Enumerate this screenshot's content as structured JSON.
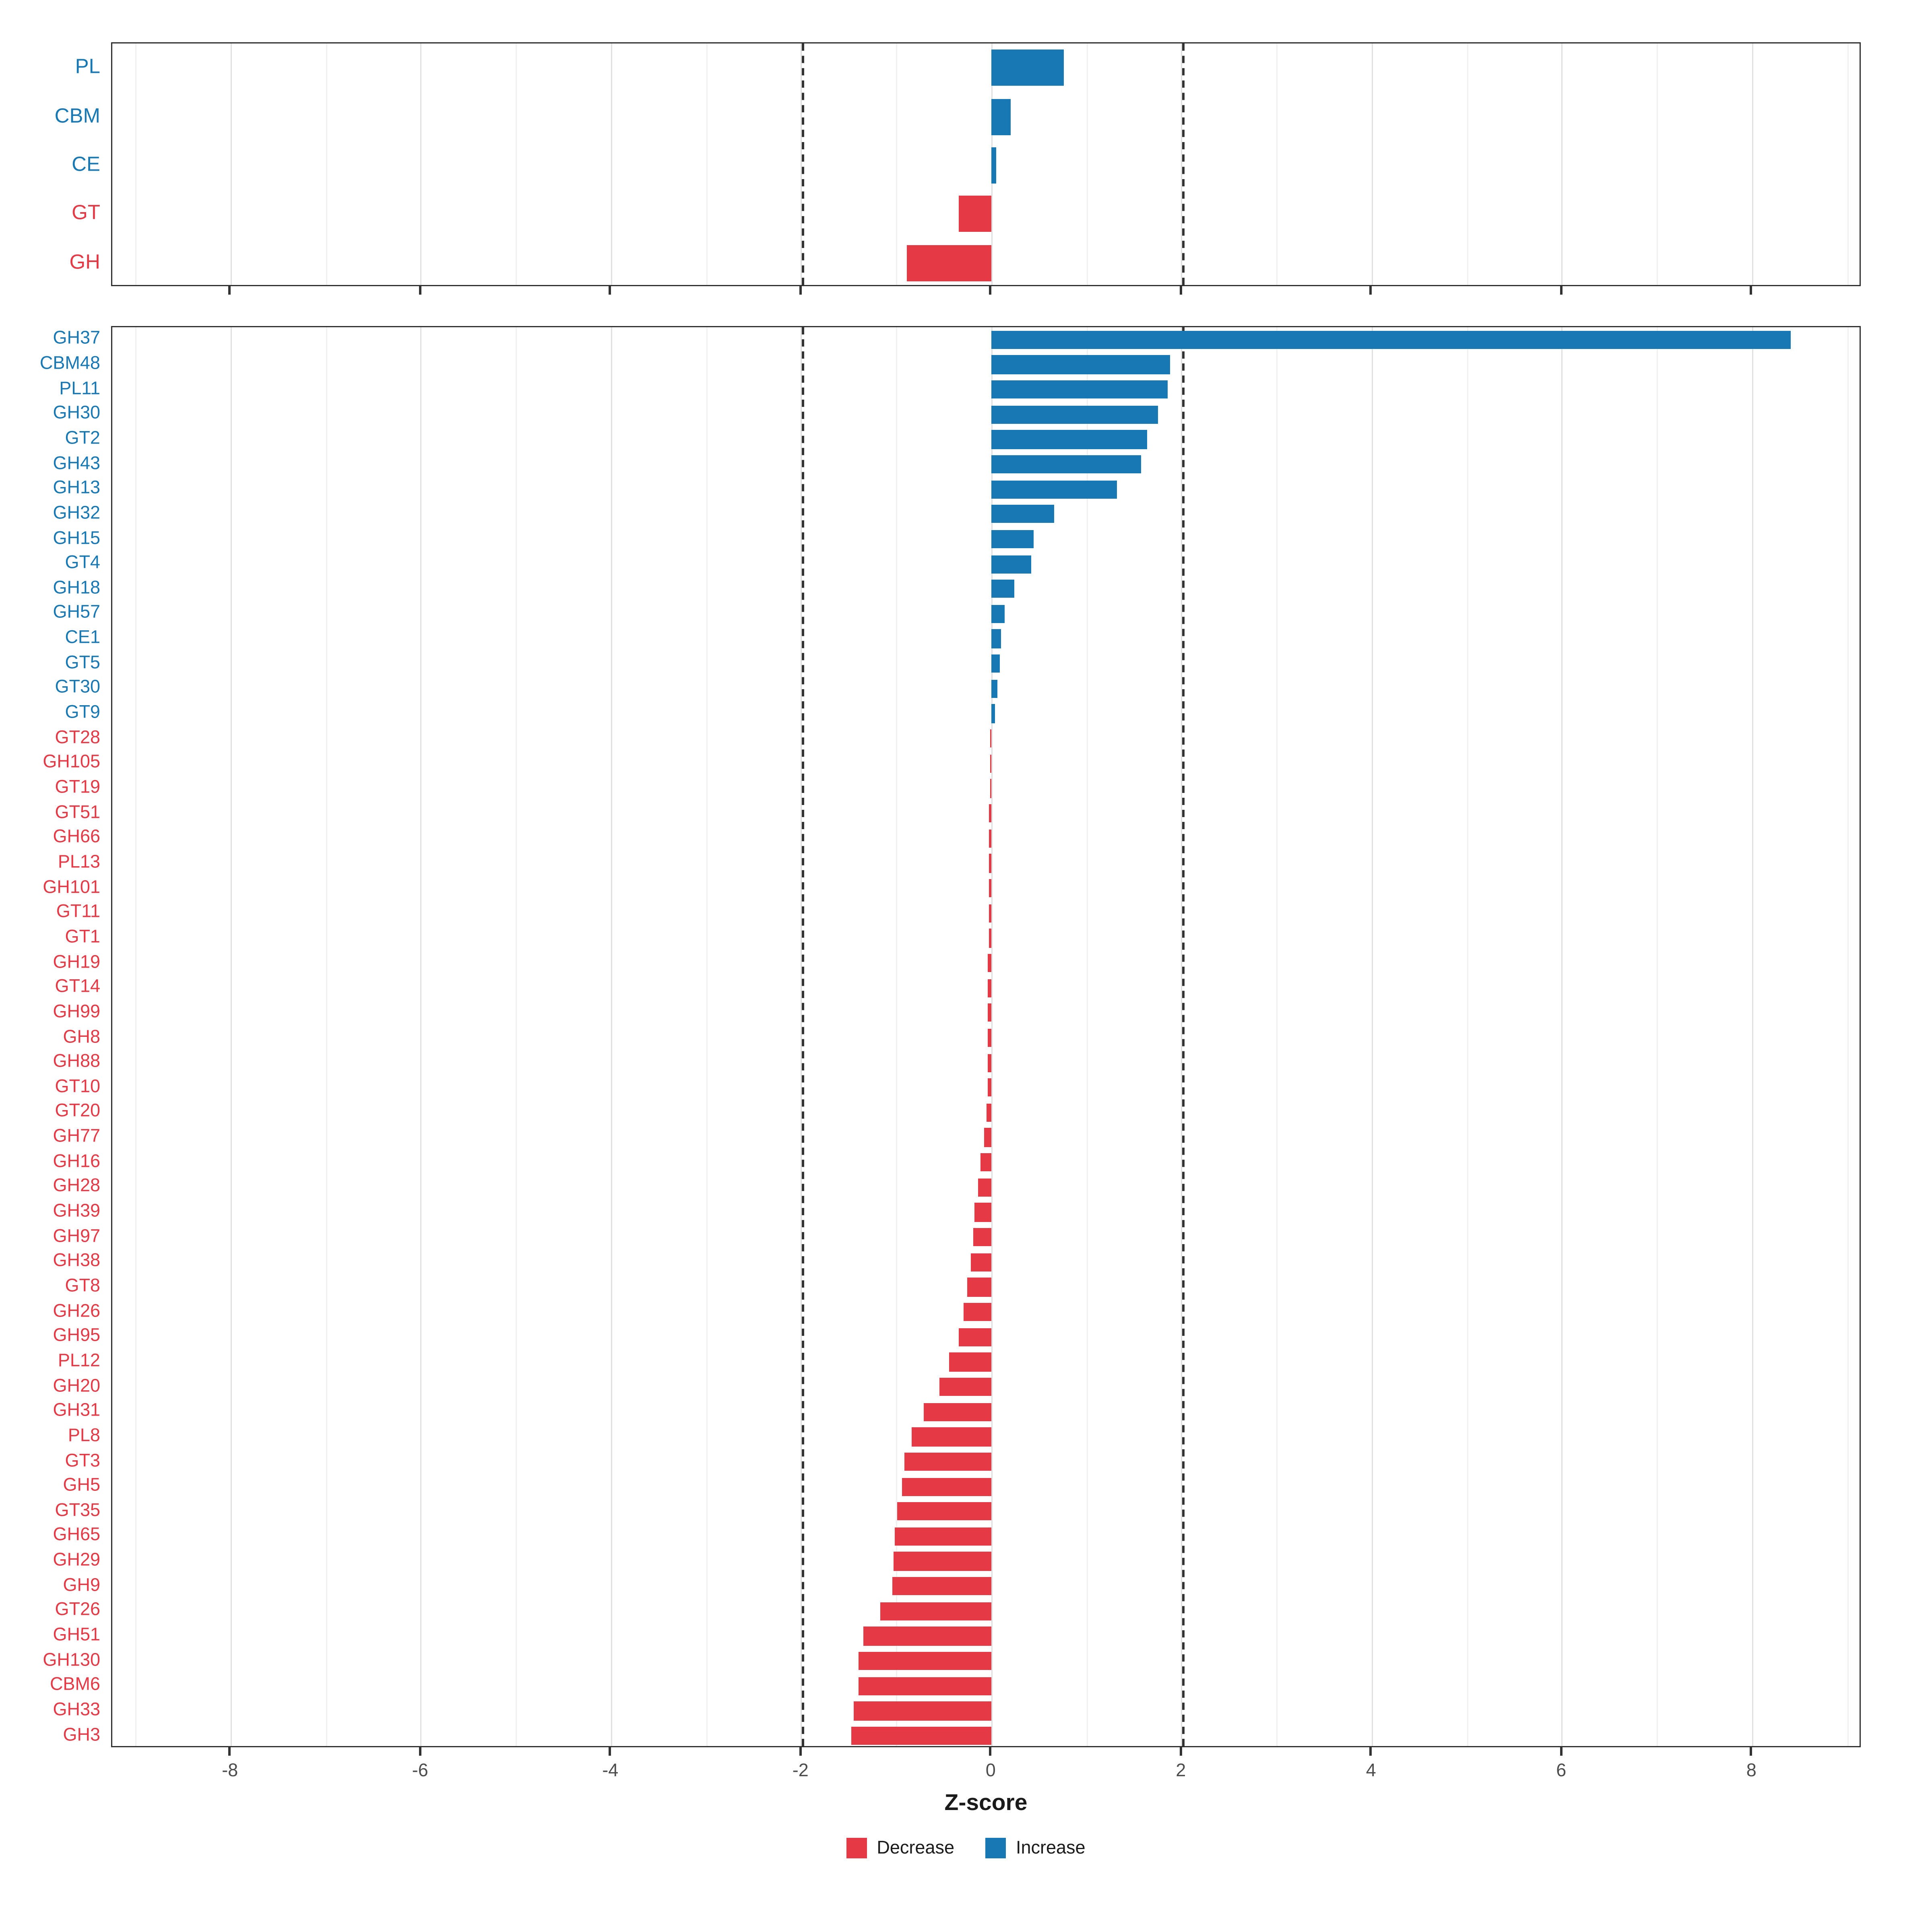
{
  "axis": {
    "xlabel": "Z-score",
    "ticks": [
      -8,
      -6,
      -4,
      -2,
      0,
      2,
      4,
      6,
      8
    ],
    "domain": [
      -9.25,
      9.15
    ],
    "dashed_lines": [
      -2,
      2
    ]
  },
  "legend": {
    "decrease": "Decrease",
    "increase": "Increase"
  },
  "colors": {
    "increase": "#1878B4",
    "decrease": "#E63946",
    "grid_major": "#E0E0E0",
    "grid_minor": "#F0F0F0",
    "reference": "#333333",
    "axis_text": "#4D4D4D"
  },
  "chart_data": [
    {
      "type": "bar",
      "orientation": "horizontal",
      "title": "",
      "panel": "cazyme-classes",
      "categories": [
        "PL",
        "CBM",
        "CE",
        "GT",
        "GH"
      ],
      "values": [
        0.76,
        0.2,
        0.05,
        -0.35,
        -0.9
      ]
    },
    {
      "type": "bar",
      "orientation": "horizontal",
      "title": "",
      "panel": "cazyme-families",
      "categories": [
        "GH37",
        "CBM48",
        "PL11",
        "GH30",
        "GT2",
        "GH43",
        "GH13",
        "GH32",
        "GH15",
        "GT4",
        "GH18",
        "GH57",
        "CE1",
        "GT5",
        "GT30",
        "GT9",
        "GT28",
        "GH105",
        "GT19",
        "GT51",
        "GH66",
        "PL13",
        "GH101",
        "GT11",
        "GT1",
        "GH19",
        "GT14",
        "GH99",
        "GH8",
        "GH88",
        "GT10",
        "GT20",
        "GH77",
        "GH16",
        "GH28",
        "GH39",
        "GH97",
        "GH38",
        "GT8",
        "GH26",
        "GH95",
        "PL12",
        "GH20",
        "GH31",
        "PL8",
        "GT3",
        "GH5",
        "GT35",
        "GH65",
        "GH29",
        "GH9",
        "GT26",
        "GH51",
        "GH130",
        "CBM6",
        "GH33",
        "GH3"
      ],
      "values": [
        8.4,
        1.88,
        1.85,
        1.75,
        1.63,
        1.57,
        1.31,
        0.66,
        0.44,
        0.41,
        0.23,
        0.13,
        0.09,
        0.08,
        0.06,
        0.03,
        -0.02,
        -0.02,
        -0.02,
        -0.03,
        -0.03,
        -0.03,
        -0.03,
        -0.03,
        -0.03,
        -0.04,
        -0.04,
        -0.04,
        -0.05,
        -0.05,
        -0.05,
        -0.06,
        -0.08,
        -0.12,
        -0.15,
        -0.18,
        -0.2,
        -0.22,
        -0.26,
        -0.3,
        -0.35,
        -0.45,
        -0.55,
        -0.72,
        -0.85,
        -0.92,
        -0.95,
        -1.0,
        -1.02,
        -1.03,
        -1.05,
        -1.18,
        -1.35,
        -1.4,
        -1.4,
        -1.45,
        -1.48
      ]
    }
  ]
}
